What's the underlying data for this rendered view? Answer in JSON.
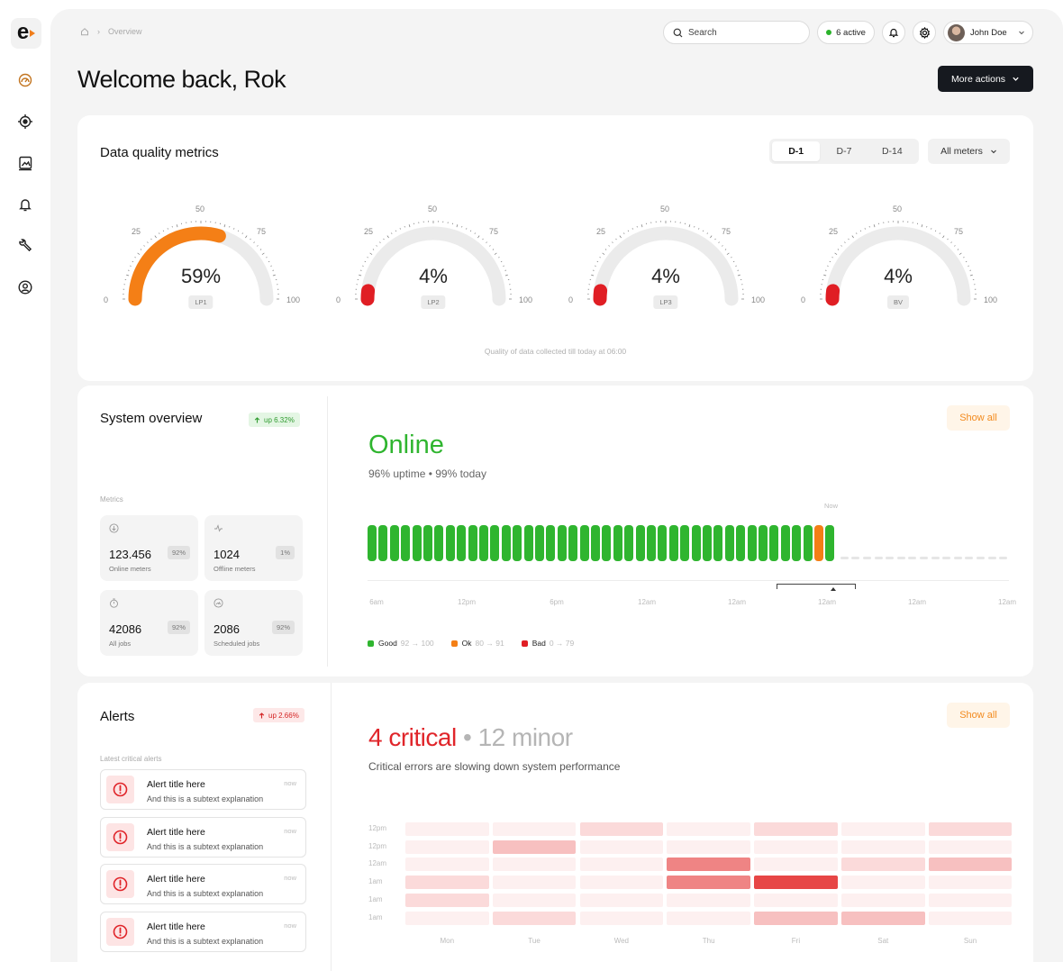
{
  "nav": {
    "items": [
      "dashboard-icon",
      "target-icon",
      "gallery-icon",
      "bell-icon",
      "wrench-icon",
      "user-circle-icon"
    ]
  },
  "breadcrumb": {
    "current": "Overview"
  },
  "header": {
    "search_placeholder": "Search",
    "active_label": "6 active",
    "user_name": "John Doe",
    "title": "Welcome back, Rok",
    "more_actions": "More actions"
  },
  "quality": {
    "title": "Data quality metrics",
    "tabs": [
      {
        "label": "D-1",
        "selected": true
      },
      {
        "label": "D-7",
        "selected": false
      },
      {
        "label": "D-14",
        "selected": false
      }
    ],
    "filter": "All meters",
    "ticks": [
      "0",
      "25",
      "50",
      "75",
      "100"
    ],
    "gauges": [
      {
        "label": "LP1",
        "display": "59%",
        "value": 59,
        "color": "#f47f16"
      },
      {
        "label": "LP2",
        "display": "4%",
        "value": 4,
        "color": "#e01e24"
      },
      {
        "label": "LP3",
        "display": "4%",
        "value": 4,
        "color": "#e01e24"
      },
      {
        "label": "BV",
        "display": "4%",
        "value": 4,
        "color": "#e01e24"
      }
    ],
    "caption": "Quality of data collected till today at 06:00"
  },
  "system": {
    "title": "System overview",
    "badge": "up 6.32%",
    "metrics_label": "Metrics",
    "metrics": [
      {
        "value": "123.456",
        "label": "Online meters",
        "pct": "92%",
        "icon": "download-icon"
      },
      {
        "value": "1024",
        "label": "Offline meters",
        "pct": "1%",
        "icon": "pulse-icon"
      },
      {
        "value": "42086",
        "label": "All jobs",
        "pct": "92%",
        "icon": "timer-icon"
      },
      {
        "value": "2086",
        "label": "Scheduled jobs",
        "pct": "92%",
        "icon": "gauge-icon"
      }
    ],
    "show_all": "Show all",
    "status": "Online",
    "uptime": "96% uptime • 99% today",
    "now_label": "Now",
    "bar_statuses": [
      "g",
      "g",
      "g",
      "g",
      "g",
      "g",
      "g",
      "g",
      "g",
      "g",
      "g",
      "g",
      "g",
      "g",
      "g",
      "g",
      "g",
      "g",
      "g",
      "g",
      "g",
      "g",
      "g",
      "g",
      "g",
      "g",
      "g",
      "g",
      "g",
      "g",
      "g",
      "g",
      "g",
      "g",
      "g",
      "g",
      "g",
      "g",
      "g",
      "g",
      "o",
      "g"
    ],
    "ghost_count": 15,
    "axis_labels": [
      "6am",
      "12pm",
      "6pm",
      "12am",
      "12am",
      "12am",
      "12am",
      "12am"
    ],
    "legend": [
      {
        "name": "Good",
        "range": "92 → 100",
        "color": "#2fb52f"
      },
      {
        "name": "Ok",
        "range": "80 → 91",
        "color": "#f47f16"
      },
      {
        "name": "Bad",
        "range": "0 → 79",
        "color": "#e01e24"
      }
    ],
    "colors": {
      "good": "#2fb52f",
      "ok": "#f47f16",
      "bad": "#e01e24"
    }
  },
  "alerts": {
    "title": "Alerts",
    "badge": "up 2.66%",
    "latest_label": "Latest critical alerts",
    "items": [
      {
        "title": "Alert title here",
        "subtitle": "And this is a subtext explanation",
        "time": "now"
      },
      {
        "title": "Alert title here",
        "subtitle": "And this is a subtext explanation",
        "time": "now"
      },
      {
        "title": "Alert title here",
        "subtitle": "And this is a subtext explanation",
        "time": "now"
      },
      {
        "title": "Alert title here",
        "subtitle": "And this is a subtext explanation",
        "time": "now"
      }
    ],
    "show_all": "Show all",
    "critical": "4 critical",
    "separator": "•",
    "minor": "12 minor",
    "summary": "Critical errors are slowing down system performance",
    "heatmap": {
      "rows": [
        "12pm",
        "12pm",
        "12am",
        "1am",
        "1am",
        "1am"
      ],
      "days": [
        "Mon",
        "Tue",
        "Wed",
        "Thu",
        "Fri",
        "Sat",
        "Sun"
      ],
      "levels": [
        [
          1,
          1,
          2,
          1,
          2,
          1,
          2
        ],
        [
          1,
          3,
          1,
          1,
          1,
          1,
          1
        ],
        [
          1,
          1,
          1,
          4,
          1,
          2,
          3
        ],
        [
          2,
          1,
          1,
          4,
          5,
          1,
          1
        ],
        [
          2,
          1,
          1,
          1,
          1,
          1,
          1
        ],
        [
          1,
          2,
          1,
          1,
          3,
          3,
          1
        ]
      ],
      "palette": [
        "#ffffff",
        "#fdf0f0",
        "#fbdada",
        "#f7c0c0",
        "#ef8484",
        "#e74646"
      ]
    }
  }
}
